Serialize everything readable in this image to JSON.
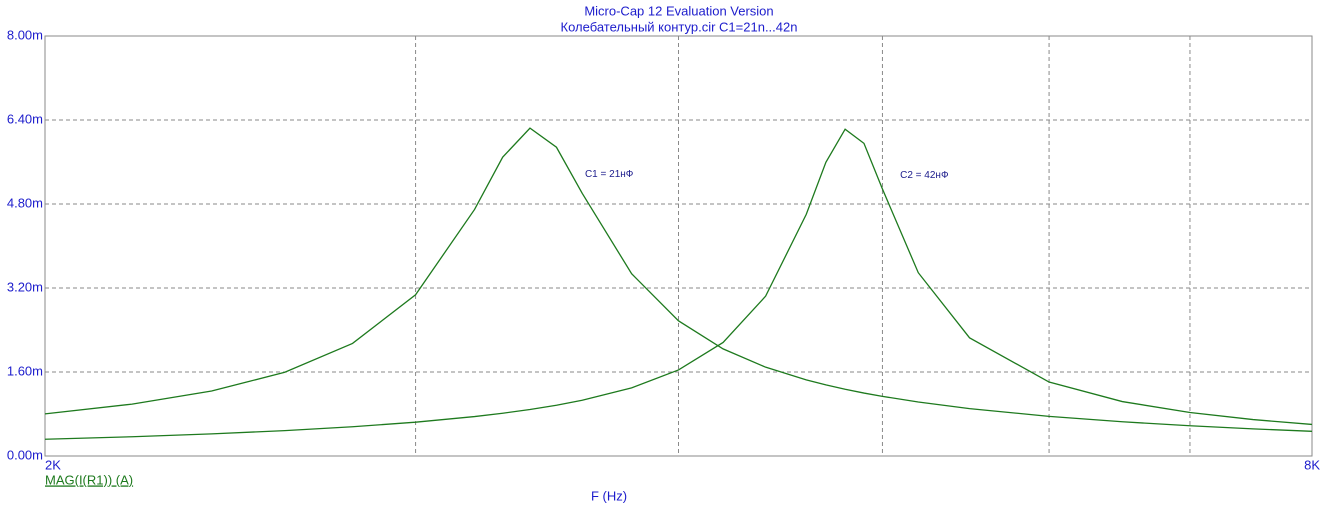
{
  "chart_data": {
    "type": "line",
    "title": "Micro-Cap 12 Evaluation Version",
    "subtitle": "Колебательный контур.cir C1=21n...42n",
    "x_label": "F (Hz)",
    "y_label": "MAG(I(R1)) (A)",
    "x_scale": "log",
    "grid": true,
    "xlim": [
      2000,
      8000
    ],
    "xticks": [
      {
        "value": 2000,
        "label": "2K"
      },
      {
        "value": 3000,
        "label": null
      },
      {
        "value": 4000,
        "label": null
      },
      {
        "value": 5000,
        "label": null
      },
      {
        "value": 6000,
        "label": null
      },
      {
        "value": 7000,
        "label": null
      },
      {
        "value": 8000,
        "label": "8K"
      }
    ],
    "ylim": [
      0,
      0.008
    ],
    "yticks": [
      {
        "value": 0,
        "label": "0.00m"
      },
      {
        "value": 0.0016,
        "label": "1.60m"
      },
      {
        "value": 0.0032,
        "label": "3.20m"
      },
      {
        "value": 0.0048,
        "label": "4.80m"
      },
      {
        "value": 0.0064,
        "label": "6.40m"
      },
      {
        "value": 0.008,
        "label": "8.00m"
      }
    ],
    "x": [
      2000,
      2200,
      2400,
      2600,
      2800,
      3000,
      3200,
      3300,
      3400,
      3500,
      3600,
      3800,
      4000,
      4200,
      4400,
      4600,
      4700,
      4800,
      4900,
      5000,
      5200,
      5500,
      6000,
      6500,
      7000,
      7500,
      8000
    ],
    "series": [
      {
        "name": "C1 = 21нФ",
        "color": "#1e7a1e",
        "values": [
          0.000803,
          0.000988,
          0.001238,
          0.001595,
          0.002144,
          0.003071,
          0.004696,
          0.005692,
          0.006245,
          0.005881,
          0.005004,
          0.003472,
          0.002575,
          0.00204,
          0.001692,
          0.00145,
          0.001355,
          0.001272,
          0.001199,
          0.001136,
          0.001028,
          0.000903,
          0.000755,
          0.000652,
          0.000576,
          0.000517,
          0.00047
        ]
      },
      {
        "name": "C2 = 42нФ",
        "color": "#1e7a1e",
        "values": [
          0.000319,
          0.000367,
          0.000421,
          0.000484,
          0.000557,
          0.000644,
          0.000751,
          0.000814,
          0.000886,
          0.000967,
          0.001061,
          0.001298,
          0.001639,
          0.002163,
          0.003044,
          0.004602,
          0.005595,
          0.006225,
          0.005955,
          0.005085,
          0.003491,
          0.002251,
          0.001409,
          0.001037,
          0.000828,
          0.000694,
          0.000601
        ]
      }
    ]
  }
}
